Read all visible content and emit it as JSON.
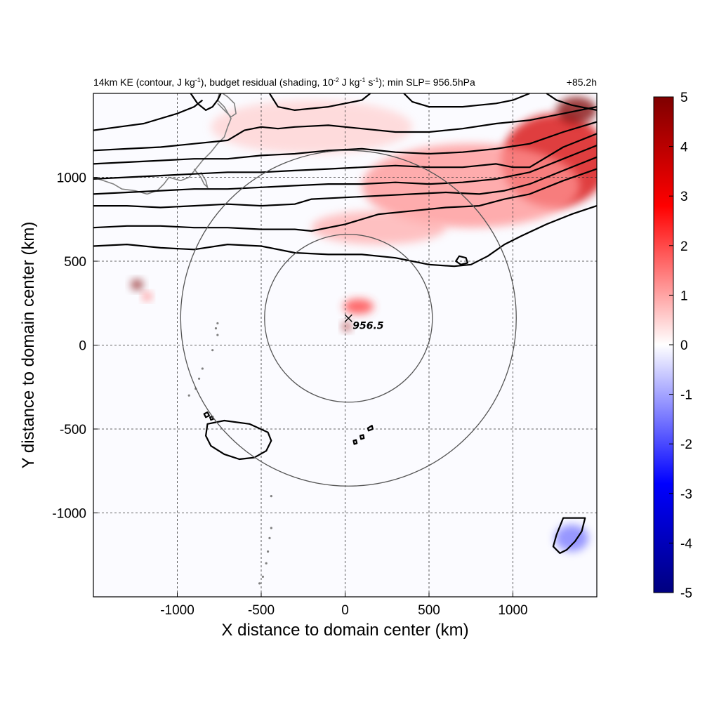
{
  "chart_data": {
    "type": "heatmap",
    "title": {
      "main": "14km KE (contour, J kg",
      "sup1": "-1",
      "mid": "), budget residual (shading, 10",
      "sup2": "-2",
      "unit1": " J kg",
      "sup3": "-1",
      "unit2": " s",
      "sup4": "-1",
      "tail": "); min SLP= 956.5hPa"
    },
    "time_label": "+85.2h",
    "xlabel": "X distance to domain center (km)",
    "ylabel": "Y distance to domain center (km)",
    "xlim": [
      -1500,
      1500
    ],
    "ylim": [
      -1500,
      1500
    ],
    "xticks": [
      -1000,
      -500,
      0,
      500,
      1000
    ],
    "yticks": [
      -1000,
      -500,
      0,
      500,
      1000
    ],
    "xtick_labels": [
      "-1000",
      "-500",
      "0",
      "500",
      "1000"
    ],
    "ytick_labels": [
      "-1000",
      "-500",
      "0",
      "500",
      "1000"
    ],
    "grid": true,
    "colorbar": {
      "range": [
        -5,
        5
      ],
      "ticks": [
        5,
        4,
        3,
        2,
        1,
        0,
        -1,
        -2,
        -3,
        -4,
        -5
      ],
      "labels": [
        "5",
        "4",
        "3",
        "2",
        "1",
        "0",
        "-1",
        "-2",
        "-3",
        "-4",
        "-5"
      ],
      "colors": [
        "#00007f",
        "#0000ff",
        "#ffffff",
        "#ff0000",
        "#7f0000"
      ]
    },
    "center_marker": {
      "x": 20,
      "y": 160,
      "label": "956.5"
    },
    "range_circles": [
      {
        "cx": 20,
        "cy": 160,
        "r": 500
      },
      {
        "cx": 20,
        "cy": 160,
        "r": 1000
      }
    ],
    "shading_regions": [
      {
        "x": 1250,
        "y": 1100,
        "rx": 320,
        "ry": 280,
        "value": 3.5
      },
      {
        "x": 1380,
        "y": 1400,
        "rx": 120,
        "ry": 80,
        "value": 5
      },
      {
        "x": 750,
        "y": 950,
        "rx": 650,
        "ry": 250,
        "value": 1.2
      },
      {
        "x": 200,
        "y": 700,
        "rx": 400,
        "ry": 100,
        "value": 0.9
      },
      {
        "x": -200,
        "y": 1300,
        "rx": 600,
        "ry": 160,
        "value": 0.5
      },
      {
        "x": -1240,
        "y": 360,
        "rx": 35,
        "ry": 30,
        "value": 5
      },
      {
        "x": -1180,
        "y": 290,
        "rx": 25,
        "ry": 22,
        "value": 2
      },
      {
        "x": 80,
        "y": 230,
        "rx": 90,
        "ry": 45,
        "value": 2.2
      },
      {
        "x": 10,
        "y": 110,
        "rx": 25,
        "ry": 25,
        "value": 4.5
      },
      {
        "x": 1350,
        "y": -1150,
        "rx": 100,
        "ry": 80,
        "value": -1.5
      }
    ],
    "ke_contours": [
      {
        "points": [
          [
            -1500,
            590
          ],
          [
            -1300,
            600
          ],
          [
            -1100,
            580
          ],
          [
            -900,
            570
          ],
          [
            -700,
            600
          ],
          [
            -500,
            590
          ],
          [
            -300,
            550
          ],
          [
            -100,
            540
          ],
          [
            100,
            540
          ],
          [
            300,
            520
          ],
          [
            500,
            480
          ],
          [
            650,
            470
          ],
          [
            750,
            480
          ],
          [
            850,
            530
          ],
          [
            950,
            600
          ],
          [
            1050,
            650
          ],
          [
            1200,
            720
          ],
          [
            1350,
            780
          ],
          [
            1500,
            830
          ]
        ]
      },
      {
        "points": [
          [
            -1500,
            700
          ],
          [
            -1300,
            710
          ],
          [
            -1100,
            710
          ],
          [
            -900,
            700
          ],
          [
            -700,
            700
          ],
          [
            -500,
            690
          ],
          [
            -300,
            690
          ],
          [
            -200,
            680
          ],
          [
            0,
            720
          ],
          [
            200,
            780
          ],
          [
            400,
            800
          ],
          [
            600,
            820
          ],
          [
            800,
            830
          ],
          [
            950,
            870
          ],
          [
            1100,
            900
          ],
          [
            1300,
            980
          ],
          [
            1500,
            1050
          ]
        ]
      },
      {
        "points": [
          [
            -1500,
            830
          ],
          [
            -1300,
            830
          ],
          [
            -1100,
            820
          ],
          [
            -900,
            830
          ],
          [
            -700,
            840
          ],
          [
            -500,
            830
          ],
          [
            -300,
            840
          ],
          [
            -200,
            870
          ],
          [
            0,
            880
          ],
          [
            200,
            890
          ],
          [
            400,
            900
          ],
          [
            600,
            910
          ],
          [
            800,
            900
          ],
          [
            950,
            920
          ],
          [
            1100,
            960
          ],
          [
            1300,
            1040
          ],
          [
            1500,
            1120
          ]
        ]
      },
      {
        "points": [
          [
            -1500,
            900
          ],
          [
            -1300,
            910
          ],
          [
            -1100,
            920
          ],
          [
            -900,
            930
          ],
          [
            -700,
            930
          ],
          [
            -500,
            940
          ],
          [
            -300,
            950
          ],
          [
            -100,
            960
          ],
          [
            100,
            960
          ],
          [
            300,
            970
          ],
          [
            500,
            960
          ],
          [
            700,
            970
          ],
          [
            900,
            990
          ],
          [
            1100,
            1030
          ],
          [
            1300,
            1110
          ],
          [
            1500,
            1190
          ]
        ]
      },
      {
        "points": [
          [
            -1500,
            990
          ],
          [
            -1300,
            1000
          ],
          [
            -1100,
            1010
          ],
          [
            -900,
            1020
          ],
          [
            -700,
            1030
          ],
          [
            -500,
            1030
          ],
          [
            -300,
            1040
          ],
          [
            -100,
            1050
          ],
          [
            100,
            1060
          ],
          [
            300,
            1070
          ],
          [
            500,
            1060
          ],
          [
            700,
            1060
          ],
          [
            900,
            1080
          ],
          [
            1000,
            1060
          ],
          [
            1100,
            1060
          ],
          [
            1300,
            1180
          ],
          [
            1500,
            1260
          ]
        ]
      },
      {
        "points": [
          [
            -1500,
            1080
          ],
          [
            -1300,
            1090
          ],
          [
            -1100,
            1100
          ],
          [
            -900,
            1110
          ],
          [
            -700,
            1110
          ],
          [
            -500,
            1130
          ],
          [
            -300,
            1140
          ],
          [
            -100,
            1160
          ],
          [
            100,
            1170
          ],
          [
            300,
            1150
          ],
          [
            500,
            1140
          ],
          [
            700,
            1150
          ],
          [
            900,
            1170
          ],
          [
            1100,
            1200
          ],
          [
            1300,
            1270
          ],
          [
            1500,
            1330
          ]
        ]
      },
      {
        "points": [
          [
            -1500,
            1160
          ],
          [
            -1300,
            1170
          ],
          [
            -1100,
            1180
          ],
          [
            -900,
            1200
          ],
          [
            -700,
            1220
          ],
          [
            -600,
            1280
          ],
          [
            -500,
            1300
          ],
          [
            -400,
            1290
          ],
          [
            -300,
            1300
          ],
          [
            -100,
            1310
          ],
          [
            100,
            1290
          ],
          [
            300,
            1270
          ],
          [
            500,
            1270
          ],
          [
            700,
            1290
          ],
          [
            900,
            1320
          ],
          [
            1100,
            1340
          ],
          [
            1300,
            1380
          ],
          [
            1500,
            1420
          ]
        ]
      },
      {
        "points": [
          [
            -1500,
            1280
          ],
          [
            -1350,
            1300
          ],
          [
            -1200,
            1320
          ],
          [
            -1000,
            1380
          ],
          [
            -900,
            1420
          ],
          [
            -850,
            1460
          ]
        ]
      },
      {
        "points": [
          [
            -450,
            1500
          ],
          [
            -400,
            1420
          ],
          [
            -300,
            1400
          ],
          [
            -100,
            1420
          ],
          [
            0,
            1440
          ],
          [
            100,
            1460
          ],
          [
            150,
            1500
          ]
        ]
      },
      {
        "points": [
          [
            350,
            1500
          ],
          [
            400,
            1450
          ],
          [
            500,
            1420
          ],
          [
            700,
            1420
          ],
          [
            800,
            1430
          ],
          [
            900,
            1440
          ],
          [
            1000,
            1460
          ],
          [
            1100,
            1500
          ]
        ]
      },
      {
        "points": [
          [
            1200,
            1500
          ],
          [
            1260,
            1460
          ],
          [
            1350,
            1430
          ],
          [
            1450,
            1410
          ],
          [
            1500,
            1400
          ]
        ]
      },
      {
        "points": [
          [
            -920,
            1500
          ],
          [
            -880,
            1440
          ],
          [
            -830,
            1400
          ],
          [
            -790,
            1420
          ],
          [
            -760,
            1460
          ],
          [
            -740,
            1500
          ]
        ]
      }
    ],
    "ke_closed_contours": [
      {
        "points": [
          [
            -820,
            -470
          ],
          [
            -720,
            -450
          ],
          [
            -570,
            -470
          ],
          [
            -460,
            -520
          ],
          [
            -440,
            -570
          ],
          [
            -470,
            -630
          ],
          [
            -540,
            -670
          ],
          [
            -630,
            -680
          ],
          [
            -720,
            -650
          ],
          [
            -800,
            -600
          ],
          [
            -830,
            -540
          ]
        ]
      },
      {
        "points": [
          [
            1300,
            -1030
          ],
          [
            1430,
            -1030
          ],
          [
            1410,
            -1110
          ],
          [
            1370,
            -1170
          ],
          [
            1320,
            -1220
          ],
          [
            1280,
            -1240
          ],
          [
            1240,
            -1200
          ],
          [
            1260,
            -1130
          ]
        ]
      },
      {
        "points": [
          [
            680,
            530
          ],
          [
            720,
            520
          ],
          [
            730,
            490
          ],
          [
            690,
            480
          ],
          [
            660,
            500
          ]
        ]
      },
      {
        "points": [
          [
            -840,
            -410
          ],
          [
            -820,
            -400
          ],
          [
            -810,
            -420
          ],
          [
            -830,
            -430
          ]
        ]
      },
      {
        "points": [
          [
            -805,
            -430
          ],
          [
            -790,
            -425
          ],
          [
            -785,
            -440
          ],
          [
            -800,
            -445
          ]
        ]
      },
      {
        "points": [
          [
            50,
            -570
          ],
          [
            65,
            -565
          ],
          [
            70,
            -585
          ],
          [
            55,
            -590
          ]
        ]
      },
      {
        "points": [
          [
            90,
            -540
          ],
          [
            108,
            -535
          ],
          [
            112,
            -555
          ],
          [
            95,
            -560
          ]
        ]
      },
      {
        "points": [
          [
            135,
            -495
          ],
          [
            160,
            -480
          ],
          [
            165,
            -500
          ],
          [
            140,
            -510
          ]
        ]
      }
    ],
    "coastlines": [
      {
        "points": [
          [
            -1500,
            1000
          ],
          [
            -1440,
            980
          ],
          [
            -1380,
            960
          ],
          [
            -1330,
            930
          ],
          [
            -1250,
            920
          ],
          [
            -1180,
            900
          ],
          [
            -1120,
            920
          ],
          [
            -1080,
            960
          ],
          [
            -1050,
            1000
          ],
          [
            -980,
            980
          ],
          [
            -930,
            1000
          ],
          [
            -890,
            1050
          ],
          [
            -850,
            1100
          ],
          [
            -800,
            1150
          ],
          [
            -760,
            1200
          ],
          [
            -720,
            1240
          ],
          [
            -700,
            1300
          ],
          [
            -680,
            1350
          ],
          [
            -720,
            1420
          ],
          [
            -760,
            1460
          ],
          [
            -750,
            1500
          ]
        ]
      },
      {
        "points": [
          [
            -900,
            1050
          ],
          [
            -860,
            1000
          ],
          [
            -840,
            960
          ],
          [
            -820,
            940
          ],
          [
            -830,
            980
          ],
          [
            -860,
            1030
          ]
        ]
      },
      {
        "points": [
          [
            -760,
            1440
          ],
          [
            -720,
            1400
          ],
          [
            -680,
            1360
          ],
          [
            -650,
            1380
          ],
          [
            -660,
            1440
          ],
          [
            -700,
            1480
          ],
          [
            -730,
            1500
          ]
        ]
      }
    ],
    "island_dots": [
      [
        -760,
        130
      ],
      [
        -770,
        100
      ],
      [
        -760,
        60
      ],
      [
        -790,
        -30
      ],
      [
        -850,
        -140
      ],
      [
        -870,
        -200
      ],
      [
        -890,
        -260
      ],
      [
        -930,
        -300
      ],
      [
        -510,
        -1420
      ],
      [
        -490,
        -1380
      ],
      [
        -470,
        -1300
      ],
      [
        -460,
        -1230
      ],
      [
        -450,
        -1150
      ],
      [
        -440,
        -1090
      ],
      [
        -440,
        -900
      ]
    ]
  }
}
